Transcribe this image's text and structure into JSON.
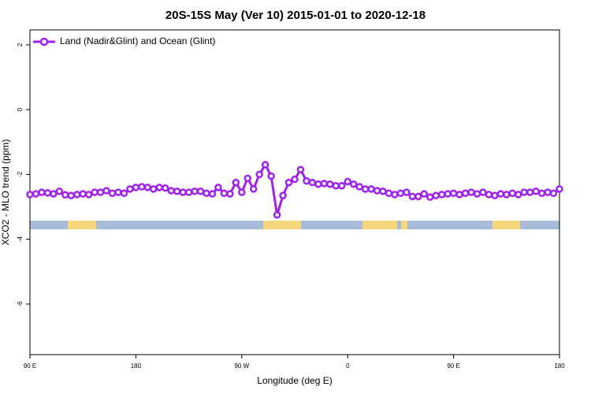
{
  "chart_data": {
    "type": "line",
    "title": "20S-15S May (Ver 10)   2015-01-01 to 2020-12-18",
    "xlabel": "Longitude (deg E)",
    "ylabel": "XCO2 - MLO trend (ppm)",
    "x": [
      90,
      95,
      100,
      105,
      110,
      115,
      120,
      125,
      130,
      135,
      140,
      145,
      150,
      155,
      160,
      165,
      170,
      175,
      180,
      185,
      190,
      195,
      200,
      205,
      210,
      215,
      220,
      225,
      230,
      235,
      240,
      245,
      250,
      255,
      260,
      265,
      270,
      275,
      280,
      285,
      290,
      295,
      300,
      305,
      310,
      315,
      320,
      325,
      330,
      335,
      340,
      345,
      350,
      355,
      360,
      365,
      370,
      375,
      380,
      385,
      390,
      395,
      400,
      405,
      410,
      415,
      420,
      425,
      430,
      435,
      440,
      445,
      450,
      455,
      460,
      465,
      470,
      475,
      480,
      485,
      490,
      495,
      500,
      505,
      510,
      515,
      520,
      525,
      530,
      535,
      540
    ],
    "series": [
      {
        "name": "Land (Nadir&Glint) and Ocean (Glint)",
        "color": "#a020f0",
        "values": [
          -2.62,
          -2.6,
          -2.55,
          -2.57,
          -2.6,
          -2.52,
          -2.63,
          -2.65,
          -2.62,
          -2.6,
          -2.62,
          -2.55,
          -2.55,
          -2.5,
          -2.58,
          -2.55,
          -2.58,
          -2.45,
          -2.4,
          -2.38,
          -2.4,
          -2.45,
          -2.4,
          -2.42,
          -2.5,
          -2.52,
          -2.55,
          -2.55,
          -2.52,
          -2.52,
          -2.58,
          -2.6,
          -2.4,
          -2.58,
          -2.6,
          -2.25,
          -2.55,
          -2.12,
          -2.45,
          -2.0,
          -1.7,
          -2.05,
          -3.25,
          -2.65,
          -2.25,
          -2.15,
          -1.85,
          -2.2,
          -2.25,
          -2.3,
          -2.28,
          -2.3,
          -2.35,
          -2.35,
          -2.22,
          -2.3,
          -2.38,
          -2.45,
          -2.45,
          -2.5,
          -2.52,
          -2.58,
          -2.62,
          -2.58,
          -2.55,
          -2.68,
          -2.68,
          -2.6,
          -2.7,
          -2.65,
          -2.62,
          -2.6,
          -2.58,
          -2.62,
          -2.58,
          -2.55,
          -2.6,
          -2.55,
          -2.62,
          -2.65,
          -2.6,
          -2.62,
          -2.58,
          -2.62,
          -2.55,
          -2.55,
          -2.52,
          -2.58,
          -2.55,
          -2.58,
          -2.45
        ]
      }
    ],
    "xlim": [
      90,
      540
    ],
    "xticks": [
      {
        "value": 90,
        "label": "90 E"
      },
      180,
      {
        "value": 270,
        "label": "90 W"
      },
      {
        "value": 360,
        "label": "0"
      },
      {
        "value": 450,
        "label": "90 E"
      },
      {
        "value": 540,
        "label": "180"
      }
    ],
    "ylim": [
      -7.56,
      2.46
    ],
    "yticks": [
      2,
      0,
      -2,
      -4,
      -6
    ],
    "legend": "top-left"
  }
}
